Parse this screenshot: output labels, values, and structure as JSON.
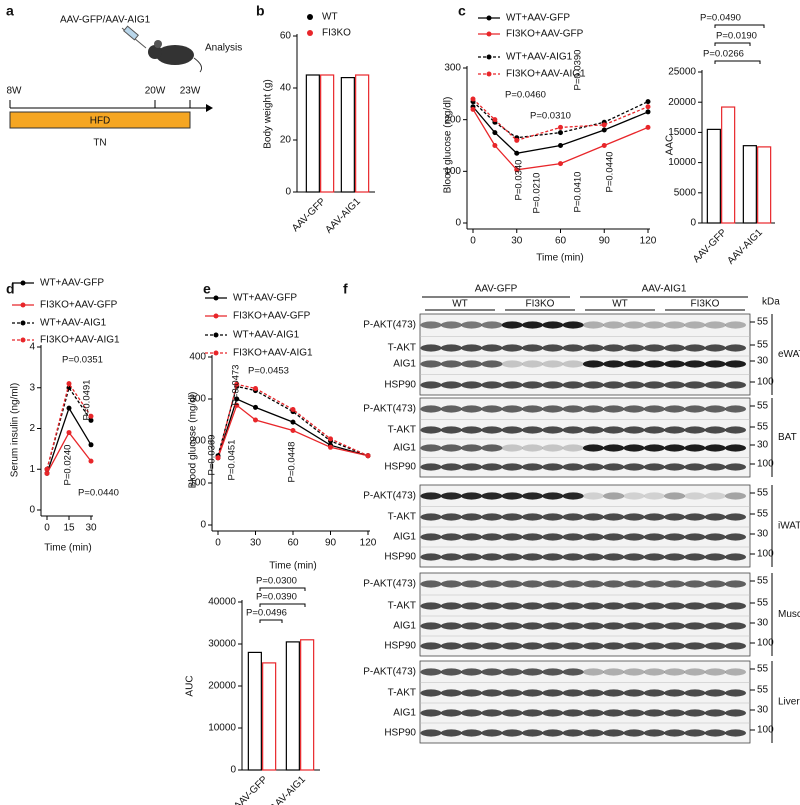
{
  "schematic": {
    "label": "a",
    "injection": "AAV-GFP/AAV-AIG1",
    "analysis": "Analysis",
    "timepoints": [
      "8W",
      "20W",
      "23W"
    ],
    "diet": "HFD",
    "housing": "TN"
  },
  "chart_data": [
    {
      "type": "bar",
      "label": "b",
      "ylabel": "Body weight (g)",
      "categories": [
        "AAV-GFP",
        "AAV-AIG1"
      ],
      "series": [
        {
          "name": "WT",
          "color": "#000000",
          "values": [
            45,
            44
          ]
        },
        {
          "name": "FI3KO",
          "color": "#e8262a",
          "values": [
            45,
            45
          ]
        }
      ],
      "ylim": [
        0,
        60
      ],
      "yticks": [
        0,
        20,
        40,
        60
      ]
    },
    {
      "type": "line",
      "label": "c",
      "xlabel": "Time (min)",
      "ylabel": "Blood glucose (mg/dl)",
      "x": [
        0,
        15,
        30,
        60,
        90,
        120
      ],
      "series": [
        {
          "name": "WT+AAV-GFP",
          "color": "#000000",
          "linestyle": "solid",
          "values": [
            225,
            175,
            135,
            150,
            180,
            215
          ]
        },
        {
          "name": "FI3KO+AAV-GFP",
          "color": "#e8262a",
          "linestyle": "solid",
          "values": [
            220,
            150,
            103,
            115,
            150,
            185
          ]
        },
        {
          "name": "WT+AAV-AIG1",
          "color": "#000000",
          "linestyle": "dashed",
          "values": [
            235,
            195,
            165,
            175,
            195,
            235
          ]
        },
        {
          "name": "FI3KO+AAV-AIG1",
          "color": "#e8262a",
          "linestyle": "dashed",
          "values": [
            240,
            200,
            160,
            185,
            190,
            225
          ]
        }
      ],
      "xlim": [
        0,
        120
      ],
      "xticks": [
        0,
        30,
        60,
        90,
        120
      ],
      "ylim": [
        0,
        300
      ],
      "yticks": [
        0,
        100,
        200,
        300
      ],
      "annotations": [
        "P=0.0460",
        "P=0.0310",
        "P=0.0390",
        "P=0.0340",
        "P=0.0210",
        "P=0.0410",
        "P=0.0440"
      ]
    },
    {
      "type": "bar",
      "ylabel": "AAC",
      "categories": [
        "AAV-GFP",
        "AAV-AIG1"
      ],
      "series": [
        {
          "color": "#000000",
          "values": [
            15500,
            12800
          ]
        },
        {
          "color": "#e8262a",
          "values": [
            19200,
            12600
          ]
        }
      ],
      "ylim": [
        0,
        25000
      ],
      "yticks": [
        0,
        5000,
        10000,
        15000,
        20000,
        25000
      ],
      "annotations": [
        "P=0.0490",
        "P=0.0190",
        "P=0.0266"
      ]
    },
    {
      "type": "line",
      "label": "d",
      "xlabel": "Time (min)",
      "ylabel": "Serum insulin (ng/ml)",
      "x": [
        0,
        15,
        30
      ],
      "series": [
        {
          "name": "WT+AAV-GFP",
          "color": "#000000",
          "linestyle": "solid",
          "values": [
            0.9,
            2.5,
            1.6
          ]
        },
        {
          "name": "FI3KO+AAV-GFP",
          "color": "#e8262a",
          "linestyle": "solid",
          "values": [
            0.9,
            1.9,
            1.2
          ]
        },
        {
          "name": "WT+AAV-AIG1",
          "color": "#000000",
          "linestyle": "dashed",
          "values": [
            1.0,
            3.0,
            2.2
          ]
        },
        {
          "name": "FI3KO+AAV-AIG1",
          "color": "#e8262a",
          "linestyle": "dashed",
          "values": [
            1.0,
            3.1,
            2.3
          ]
        }
      ],
      "xlim": [
        0,
        30
      ],
      "xticks": [
        0,
        15,
        30
      ],
      "ylim": [
        0,
        4
      ],
      "yticks": [
        0,
        1,
        2,
        3,
        4
      ],
      "annotations": [
        "P=0.0351",
        "P=0.0491",
        "P=0.0240",
        "P=0.0440"
      ]
    },
    {
      "type": "line",
      "label": "e",
      "xlabel": "Time (min)",
      "ylabel": "Blood glucose (mg/dl)",
      "x": [
        0,
        15,
        30,
        60,
        90,
        120
      ],
      "series": [
        {
          "name": "WT+AAV-GFP",
          "color": "#000000",
          "linestyle": "solid",
          "values": [
            160,
            300,
            280,
            245,
            190,
            165
          ]
        },
        {
          "name": "FI3KO+AAV-GFP",
          "color": "#e8262a",
          "linestyle": "solid",
          "values": [
            160,
            285,
            250,
            225,
            185,
            165
          ]
        },
        {
          "name": "WT+AAV-AIG1",
          "color": "#000000",
          "linestyle": "dashed",
          "values": [
            165,
            330,
            320,
            270,
            200,
            165
          ]
        },
        {
          "name": "FI3KO+AAV-AIG1",
          "color": "#e8262a",
          "linestyle": "dashed",
          "values": [
            160,
            335,
            325,
            275,
            205,
            165
          ]
        }
      ],
      "xlim": [
        0,
        120
      ],
      "xticks": [
        0,
        30,
        60,
        90,
        120
      ],
      "ylim": [
        0,
        400
      ],
      "yticks": [
        0,
        100,
        200,
        300,
        400
      ],
      "annotations": [
        "P=0.0473",
        "P=0.0453",
        "P=0.0369",
        "P=0.0451",
        "P=0.0448"
      ]
    },
    {
      "type": "bar",
      "ylabel": "AUC",
      "categories": [
        "AAV-GFP",
        "AAV-AIG1"
      ],
      "series": [
        {
          "color": "#000000",
          "values": [
            28000,
            30500
          ]
        },
        {
          "color": "#e8262a",
          "values": [
            25500,
            31000
          ]
        }
      ],
      "ylim": [
        0,
        40000
      ],
      "yticks": [
        0,
        10000,
        20000,
        30000,
        40000
      ],
      "annotations": [
        "P=0.0300",
        "P=0.0390",
        "P=0.0496"
      ]
    }
  ],
  "blot": {
    "label": "f",
    "groups": [
      "AAV-GFP",
      "AAV-AIG1"
    ],
    "genotypes": [
      "WT",
      "FI3KO",
      "WT",
      "FI3KO"
    ],
    "unit": "kDa",
    "tissues": [
      {
        "name": "eWAT",
        "rows": [
          {
            "protein": "P-AKT(473)",
            "kda": 55
          },
          {
            "protein": "T-AKT",
            "kda": 55
          },
          {
            "protein": "AIG1",
            "kda": 30
          },
          {
            "protein": "HSP90",
            "kda": 100
          }
        ]
      },
      {
        "name": "BAT",
        "rows": [
          {
            "protein": "P-AKT(473)",
            "kda": 55
          },
          {
            "protein": "T-AKT",
            "kda": 55
          },
          {
            "protein": "AIG1",
            "kda": 30
          },
          {
            "protein": "HSP90",
            "kda": 100
          }
        ]
      },
      {
        "name": "iWAT",
        "rows": [
          {
            "protein": "P-AKT(473)",
            "kda": 55
          },
          {
            "protein": "T-AKT",
            "kda": 55
          },
          {
            "protein": "AIG1",
            "kda": 30
          },
          {
            "protein": "HSP90",
            "kda": 100
          }
        ]
      },
      {
        "name": "Muscle",
        "rows": [
          {
            "protein": "P-AKT(473)",
            "kda": 55
          },
          {
            "protein": "T-AKT",
            "kda": 55
          },
          {
            "protein": "AIG1",
            "kda": 30
          },
          {
            "protein": "HSP90",
            "kda": 100
          }
        ]
      },
      {
        "name": "Liver",
        "rows": [
          {
            "protein": "P-AKT(473)",
            "kda": 55
          },
          {
            "protein": "T-AKT",
            "kda": 55
          },
          {
            "protein": "AIG1",
            "kda": 30
          },
          {
            "protein": "HSP90",
            "kda": 100
          }
        ]
      }
    ]
  }
}
